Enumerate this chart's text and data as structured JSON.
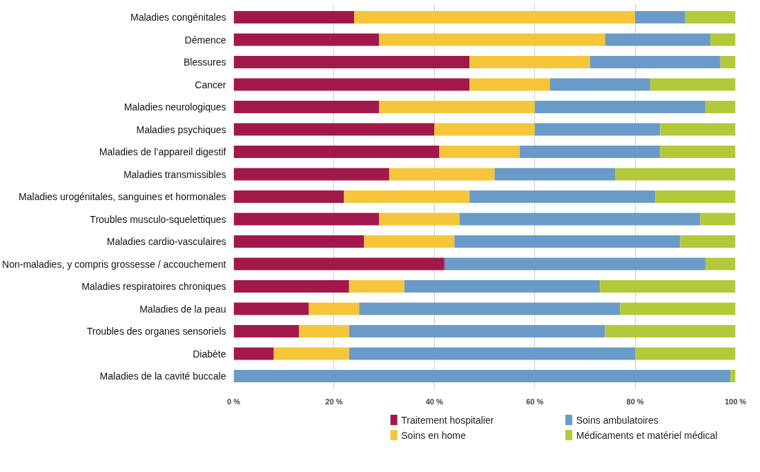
{
  "chart_data": {
    "type": "bar",
    "orientation": "horizontal",
    "stacked": true,
    "categories": [
      "Maladies congénitales",
      "Démence",
      "Blessures",
      "Cancer",
      "Maladies neurologiques",
      "Maladies psychiques",
      "Maladies de l’appareil digestif",
      "Maladies transmissibles",
      "Maladies urogénitales, sanguines et hormonales",
      "Troubles musculo-squelettiques",
      "Maladies cardio-vasculaires",
      "Non-maladies, y compris grossesse / accouchement",
      "Maladies respiratoires chroniques",
      "Maladies de la peau",
      "Troubles des organes sensoriels",
      "Diabète",
      "Maladies de la cavité buccale"
    ],
    "series": [
      {
        "name": "Traitement hospitalier",
        "color": "#a3184a",
        "values": [
          24,
          29,
          47,
          47,
          29,
          40,
          41,
          31,
          22,
          29,
          26,
          42,
          23,
          15,
          13,
          8,
          0
        ]
      },
      {
        "name": "Soins en home",
        "color": "#f5c63a",
        "values": [
          56,
          45,
          24,
          16,
          31,
          20,
          16,
          21,
          25,
          16,
          18,
          0,
          11,
          10,
          10,
          15,
          0
        ]
      },
      {
        "name": "Soins ambulatoires",
        "color": "#6a9bc8",
        "values": [
          10,
          21,
          26,
          20,
          34,
          25,
          28,
          24,
          37,
          48,
          45,
          52,
          39,
          52,
          51,
          57,
          99
        ]
      },
      {
        "name": "Médicaments et matériel médical",
        "color": "#b3c93a",
        "values": [
          10,
          5,
          3,
          17,
          6,
          15,
          15,
          24,
          16,
          7,
          11,
          6,
          27,
          23,
          26,
          20,
          1
        ]
      }
    ],
    "xlim": [
      0,
      100
    ],
    "xticks": [
      {
        "value": 0,
        "label": "0 %"
      },
      {
        "value": 20,
        "label": "20 %"
      },
      {
        "value": 40,
        "label": "40 %"
      },
      {
        "value": 60,
        "label": "60 %"
      },
      {
        "value": 80,
        "label": "80 %"
      },
      {
        "value": 100,
        "label": "100 %"
      }
    ],
    "grid": "x",
    "legend": "bottom"
  }
}
